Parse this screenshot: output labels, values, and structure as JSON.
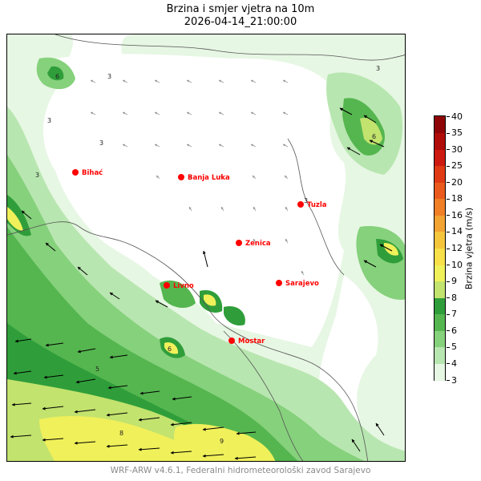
{
  "title_line1": "Brzina i smjer vjetra na 10m",
  "title_line2": "2026-04-14_21:00:00",
  "footer": "WRF-ARW v4.6.1, Federalni hidrometeorološki zavod Sarajevo",
  "colorbar": {
    "label": "Brzina vjetra (m/s)",
    "ticks": [
      "3",
      "4",
      "5",
      "6",
      "7",
      "8",
      "9",
      "10",
      "12",
      "14",
      "16",
      "18",
      "20",
      "25",
      "30",
      "35",
      "40"
    ],
    "colors": [
      "#e6f7e3",
      "#b8e6b0",
      "#86d17c",
      "#55b64f",
      "#2f9e3a",
      "#c2e36e",
      "#f0f05a",
      "#f7e04a",
      "#f5c53c",
      "#f3a331",
      "#f07f26",
      "#ea5a1c",
      "#e03a15",
      "#cc1a10",
      "#b00c0a",
      "#8e0508"
    ]
  },
  "cities": [
    {
      "name": "Bihać"
    },
    {
      "name": "Banja Luka"
    },
    {
      "name": "Tuzla"
    },
    {
      "name": "Zenica"
    },
    {
      "name": "Livno"
    },
    {
      "name": "Sarajevo"
    },
    {
      "name": "Mostar"
    }
  ],
  "colors": {
    "city_marker": "#ff0000",
    "city_label": "#ff0000",
    "frame": "#000000"
  }
}
